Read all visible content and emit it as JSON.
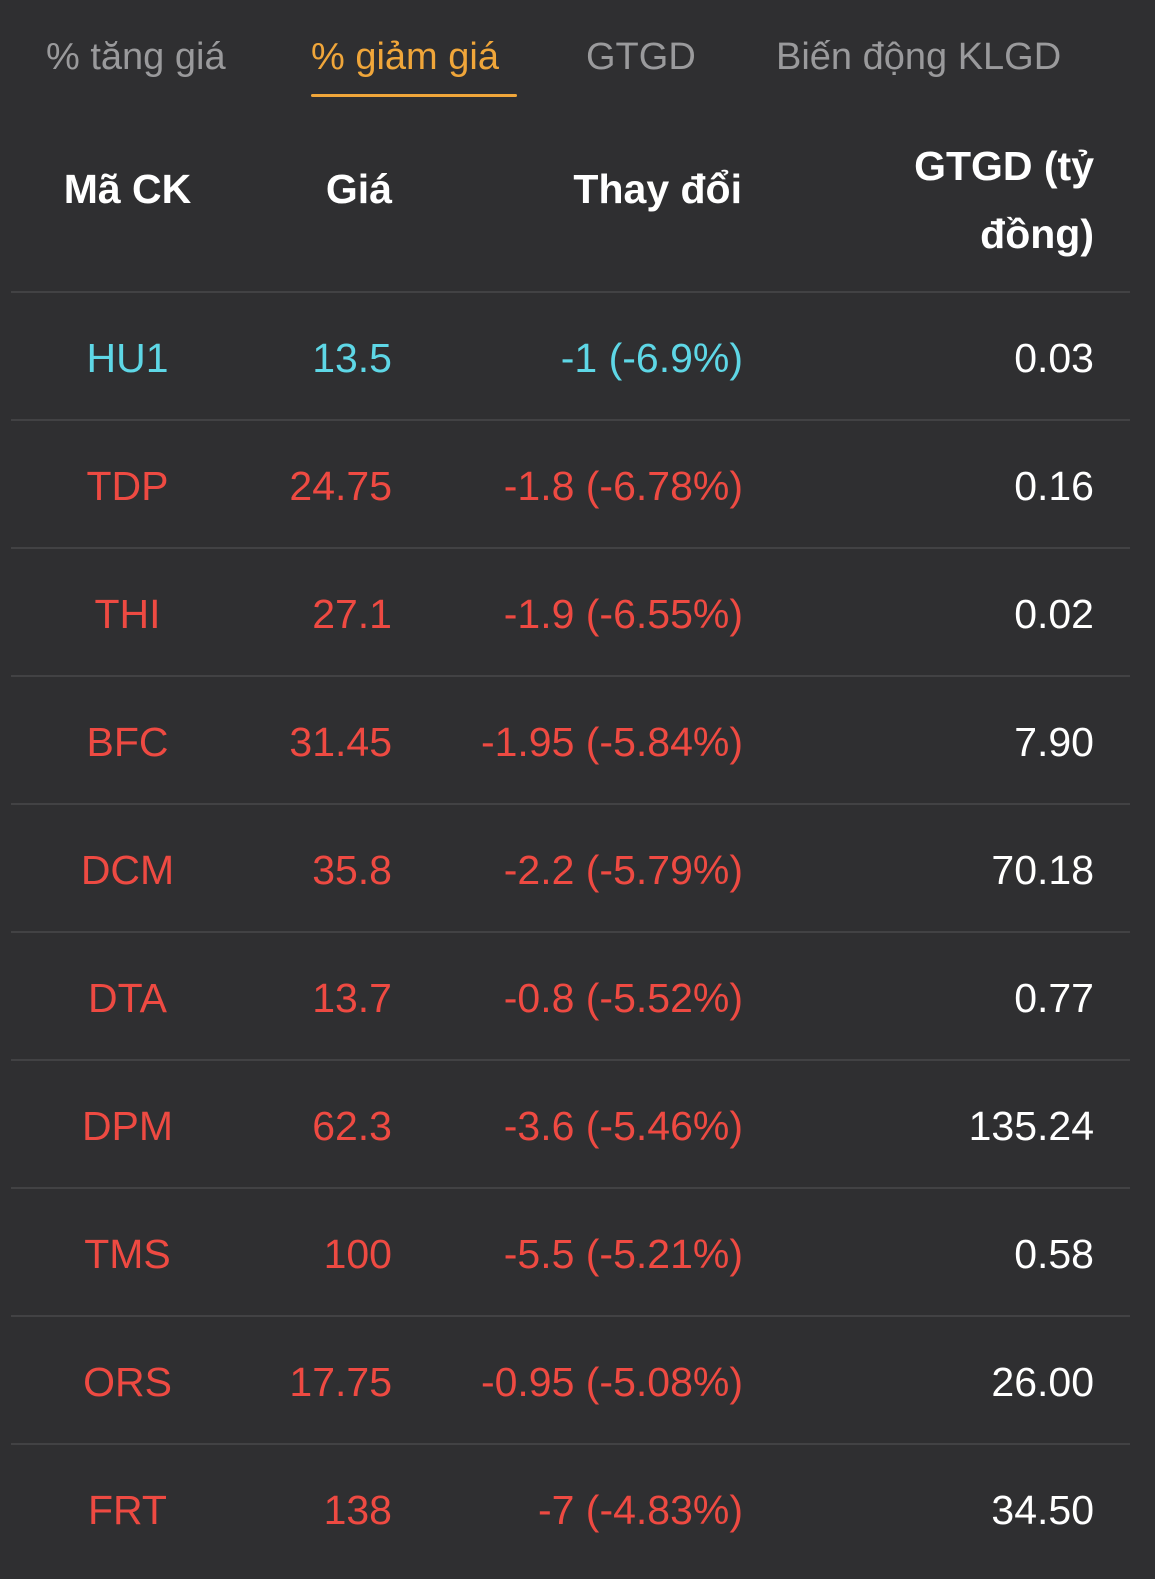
{
  "tabs": [
    {
      "label": "% tăng giá",
      "active": false
    },
    {
      "label": "% giảm giá",
      "active": true
    },
    {
      "label": "GTGD",
      "active": false
    },
    {
      "label": "Biến động KLGD",
      "active": false
    }
  ],
  "header": {
    "ticker": "Mã CK",
    "price": "Giá",
    "change": "Thay đổi",
    "value_line1": "GTGD (tỷ",
    "value_line2": "đồng)"
  },
  "colors": {
    "floor": "#5ed7e6",
    "down": "#ee4a42",
    "active_tab": "#f0a63a"
  },
  "rows": [
    {
      "ticker": "HU1",
      "price": "13.5",
      "change": "-1 (-6.9%)",
      "value": "0.03",
      "status": "floor"
    },
    {
      "ticker": "TDP",
      "price": "24.75",
      "change": "-1.8 (-6.78%)",
      "value": "0.16",
      "status": "down"
    },
    {
      "ticker": "THI",
      "price": "27.1",
      "change": "-1.9 (-6.55%)",
      "value": "0.02",
      "status": "down"
    },
    {
      "ticker": "BFC",
      "price": "31.45",
      "change": "-1.95 (-5.84%)",
      "value": "7.90",
      "status": "down"
    },
    {
      "ticker": "DCM",
      "price": "35.8",
      "change": "-2.2 (-5.79%)",
      "value": "70.18",
      "status": "down"
    },
    {
      "ticker": "DTA",
      "price": "13.7",
      "change": "-0.8 (-5.52%)",
      "value": "0.77",
      "status": "down"
    },
    {
      "ticker": "DPM",
      "price": "62.3",
      "change": "-3.6 (-5.46%)",
      "value": "135.24",
      "status": "down"
    },
    {
      "ticker": "TMS",
      "price": "100",
      "change": "-5.5 (-5.21%)",
      "value": "0.58",
      "status": "down"
    },
    {
      "ticker": "ORS",
      "price": "17.75",
      "change": "-0.95 (-5.08%)",
      "value": "26.00",
      "status": "down"
    },
    {
      "ticker": "FRT",
      "price": "138",
      "change": "-7 (-4.83%)",
      "value": "34.50",
      "status": "down"
    }
  ]
}
